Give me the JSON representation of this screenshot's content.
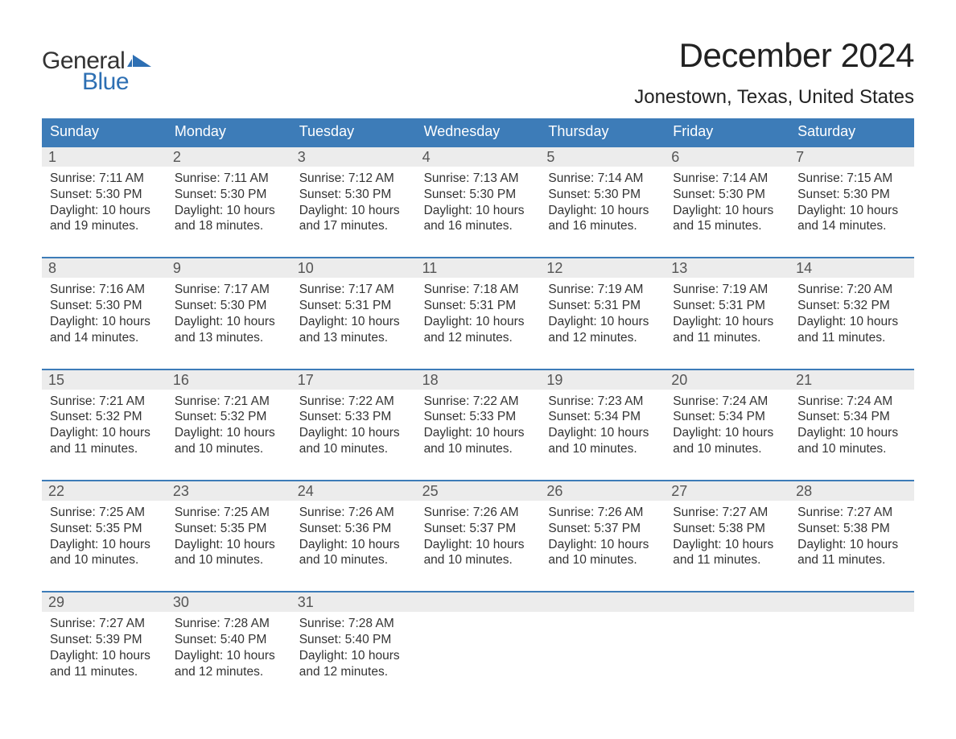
{
  "brand": {
    "part1": "General",
    "part2": "Blue",
    "accent_color": "#2d6fb3"
  },
  "title": "December 2024",
  "location": "Jonestown, Texas, United States",
  "colors": {
    "header_bg": "#3d7cb8",
    "header_text": "#ffffff",
    "daynum_bg": "#ececec",
    "daynum_text": "#555555",
    "body_text": "#333333",
    "rule": "#3d7cb8",
    "page_bg": "#ffffff"
  },
  "weekdays": [
    "Sunday",
    "Monday",
    "Tuesday",
    "Wednesday",
    "Thursday",
    "Friday",
    "Saturday"
  ],
  "labels": {
    "sunrise": "Sunrise:",
    "sunset": "Sunset:",
    "daylight": "Daylight:"
  },
  "weeks": [
    [
      {
        "n": "1",
        "sr": "7:11 AM",
        "ss": "5:30 PM",
        "dl": "10 hours and 19 minutes."
      },
      {
        "n": "2",
        "sr": "7:11 AM",
        "ss": "5:30 PM",
        "dl": "10 hours and 18 minutes."
      },
      {
        "n": "3",
        "sr": "7:12 AM",
        "ss": "5:30 PM",
        "dl": "10 hours and 17 minutes."
      },
      {
        "n": "4",
        "sr": "7:13 AM",
        "ss": "5:30 PM",
        "dl": "10 hours and 16 minutes."
      },
      {
        "n": "5",
        "sr": "7:14 AM",
        "ss": "5:30 PM",
        "dl": "10 hours and 16 minutes."
      },
      {
        "n": "6",
        "sr": "7:14 AM",
        "ss": "5:30 PM",
        "dl": "10 hours and 15 minutes."
      },
      {
        "n": "7",
        "sr": "7:15 AM",
        "ss": "5:30 PM",
        "dl": "10 hours and 14 minutes."
      }
    ],
    [
      {
        "n": "8",
        "sr": "7:16 AM",
        "ss": "5:30 PM",
        "dl": "10 hours and 14 minutes."
      },
      {
        "n": "9",
        "sr": "7:17 AM",
        "ss": "5:30 PM",
        "dl": "10 hours and 13 minutes."
      },
      {
        "n": "10",
        "sr": "7:17 AM",
        "ss": "5:31 PM",
        "dl": "10 hours and 13 minutes."
      },
      {
        "n": "11",
        "sr": "7:18 AM",
        "ss": "5:31 PM",
        "dl": "10 hours and 12 minutes."
      },
      {
        "n": "12",
        "sr": "7:19 AM",
        "ss": "5:31 PM",
        "dl": "10 hours and 12 minutes."
      },
      {
        "n": "13",
        "sr": "7:19 AM",
        "ss": "5:31 PM",
        "dl": "10 hours and 11 minutes."
      },
      {
        "n": "14",
        "sr": "7:20 AM",
        "ss": "5:32 PM",
        "dl": "10 hours and 11 minutes."
      }
    ],
    [
      {
        "n": "15",
        "sr": "7:21 AM",
        "ss": "5:32 PM",
        "dl": "10 hours and 11 minutes."
      },
      {
        "n": "16",
        "sr": "7:21 AM",
        "ss": "5:32 PM",
        "dl": "10 hours and 10 minutes."
      },
      {
        "n": "17",
        "sr": "7:22 AM",
        "ss": "5:33 PM",
        "dl": "10 hours and 10 minutes."
      },
      {
        "n": "18",
        "sr": "7:22 AM",
        "ss": "5:33 PM",
        "dl": "10 hours and 10 minutes."
      },
      {
        "n": "19",
        "sr": "7:23 AM",
        "ss": "5:34 PM",
        "dl": "10 hours and 10 minutes."
      },
      {
        "n": "20",
        "sr": "7:24 AM",
        "ss": "5:34 PM",
        "dl": "10 hours and 10 minutes."
      },
      {
        "n": "21",
        "sr": "7:24 AM",
        "ss": "5:34 PM",
        "dl": "10 hours and 10 minutes."
      }
    ],
    [
      {
        "n": "22",
        "sr": "7:25 AM",
        "ss": "5:35 PM",
        "dl": "10 hours and 10 minutes."
      },
      {
        "n": "23",
        "sr": "7:25 AM",
        "ss": "5:35 PM",
        "dl": "10 hours and 10 minutes."
      },
      {
        "n": "24",
        "sr": "7:26 AM",
        "ss": "5:36 PM",
        "dl": "10 hours and 10 minutes."
      },
      {
        "n": "25",
        "sr": "7:26 AM",
        "ss": "5:37 PM",
        "dl": "10 hours and 10 minutes."
      },
      {
        "n": "26",
        "sr": "7:26 AM",
        "ss": "5:37 PM",
        "dl": "10 hours and 10 minutes."
      },
      {
        "n": "27",
        "sr": "7:27 AM",
        "ss": "5:38 PM",
        "dl": "10 hours and 11 minutes."
      },
      {
        "n": "28",
        "sr": "7:27 AM",
        "ss": "5:38 PM",
        "dl": "10 hours and 11 minutes."
      }
    ],
    [
      {
        "n": "29",
        "sr": "7:27 AM",
        "ss": "5:39 PM",
        "dl": "10 hours and 11 minutes."
      },
      {
        "n": "30",
        "sr": "7:28 AM",
        "ss": "5:40 PM",
        "dl": "10 hours and 12 minutes."
      },
      {
        "n": "31",
        "sr": "7:28 AM",
        "ss": "5:40 PM",
        "dl": "10 hours and 12 minutes."
      },
      null,
      null,
      null,
      null
    ]
  ]
}
